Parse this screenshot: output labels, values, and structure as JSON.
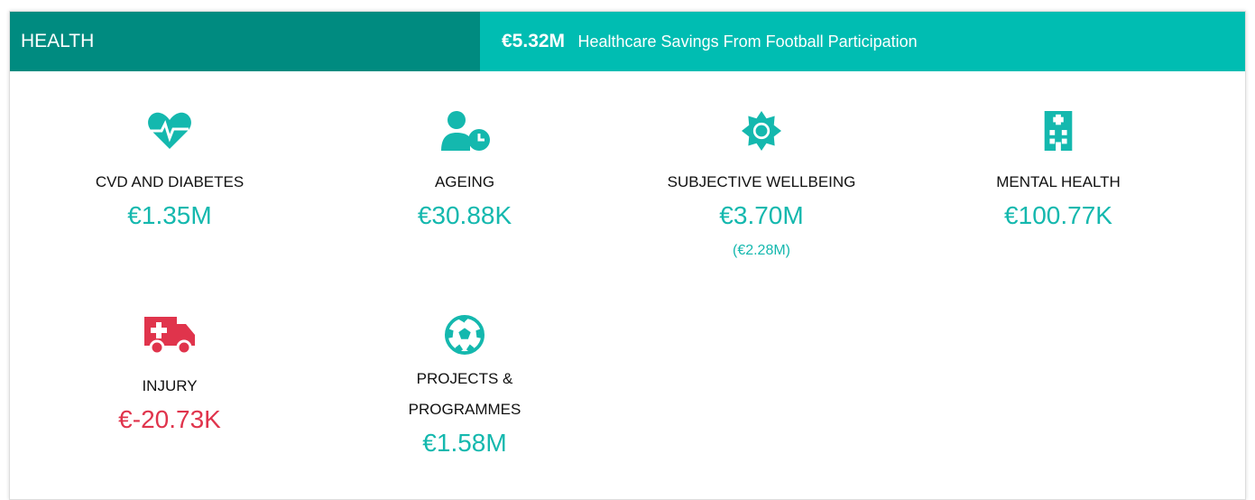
{
  "header": {
    "title": "HEALTH",
    "total": "€5.32M",
    "subtitle": "Healthcare Savings From Football Participation"
  },
  "items": [
    {
      "label": "CVD AND DIABETES",
      "value": "€1.35M"
    },
    {
      "label": "AGEING",
      "value": "€30.88K"
    },
    {
      "label": "SUBJECTIVE WELLBEING",
      "value": "€3.70M",
      "note": "(€2.28M)"
    },
    {
      "label": "MENTAL HEALTH",
      "value": "€100.77K"
    },
    {
      "label": "INJURY",
      "value": "€-20.73K"
    },
    {
      "label": "PROJECTS & PROGRAMMES",
      "value": "€1.58M"
    }
  ]
}
